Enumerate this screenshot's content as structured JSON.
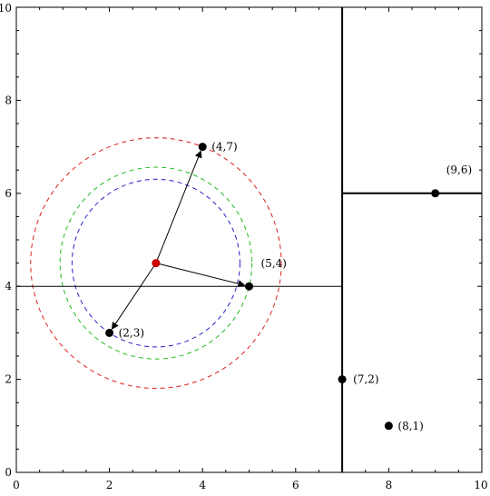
{
  "chart_data": {
    "type": "scatter",
    "title": "",
    "xlabel": "",
    "ylabel": "",
    "xlim": [
      0,
      10
    ],
    "ylim": [
      0,
      10
    ],
    "grid": false,
    "x_ticks": [
      "0",
      "2",
      "4",
      "6",
      "8",
      "10"
    ],
    "y_ticks": [
      "0",
      "2",
      "4",
      "6",
      "8",
      "10"
    ],
    "points": [
      {
        "x": 2,
        "y": 3,
        "label": "(2,3)"
      },
      {
        "x": 5,
        "y": 4,
        "label": "(5,4)"
      },
      {
        "x": 9,
        "y": 6,
        "label": "(9,6)"
      },
      {
        "x": 4,
        "y": 7,
        "label": "(4,7)"
      },
      {
        "x": 8,
        "y": 1,
        "label": "(8,1)"
      },
      {
        "x": 7,
        "y": 2,
        "label": "(7,2)"
      }
    ],
    "query_point": {
      "x": 3,
      "y": 4.5,
      "color": "#cc0000"
    },
    "splits": [
      {
        "orientation": "vertical",
        "at": 7,
        "from": 0,
        "to": 10,
        "bold": true
      },
      {
        "orientation": "horizontal",
        "at": 4,
        "from": 0,
        "to": 7,
        "bold": false
      },
      {
        "orientation": "horizontal",
        "at": 6,
        "from": 7,
        "to": 10,
        "bold": true
      }
    ],
    "circles": [
      {
        "cx": 3,
        "cy": 4.5,
        "r": 2.6926,
        "color": "#dd2222"
      },
      {
        "cx": 3,
        "cy": 4.5,
        "r": 2.0616,
        "color": "#22bb22"
      },
      {
        "cx": 3,
        "cy": 4.5,
        "r": 1.8028,
        "color": "#2222cc"
      }
    ],
    "arrows": [
      {
        "from": [
          3,
          4.5
        ],
        "to": [
          4,
          7
        ]
      },
      {
        "from": [
          3,
          4.5
        ],
        "to": [
          5,
          4
        ]
      },
      {
        "from": [
          3,
          4.5
        ],
        "to": [
          2,
          3
        ]
      }
    ]
  }
}
